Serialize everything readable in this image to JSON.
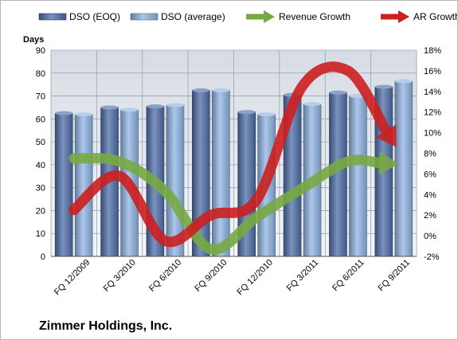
{
  "chart_data": {
    "type": "bar",
    "title": "Zimmer Holdings, Inc.",
    "y_left_label": "Days",
    "y_left_range": [
      0,
      90
    ],
    "y_left_ticks": [
      "0",
      "10",
      "20",
      "30",
      "40",
      "50",
      "60",
      "70",
      "80",
      "90"
    ],
    "y_right_range": [
      -2,
      18
    ],
    "y_right_ticks": [
      "-2%",
      "0%",
      "2%",
      "4%",
      "6%",
      "8%",
      "10%",
      "12%",
      "14%",
      "16%",
      "18%"
    ],
    "categories": [
      "FQ 12/2009",
      "FQ 3/2010",
      "FQ 6/2010",
      "FQ 9/2010",
      "FQ 12/2010",
      "FQ 3/2011",
      "FQ 6/2011",
      "FQ 9/2011"
    ],
    "bar_series": [
      {
        "name": "DSO (EOQ)",
        "color": "#4f6ea8",
        "values": [
          62.5,
          65,
          65.5,
          72.5,
          63,
          70.5,
          71.5,
          74
        ]
      },
      {
        "name": "DSO (average)",
        "color": "#8fb4e3",
        "values": [
          62,
          64,
          66,
          72.5,
          62,
          66.5,
          70,
          76.5
        ]
      }
    ],
    "line_series": [
      {
        "name": "Revenue Growth",
        "color": "#77a943",
        "values": [
          7.5,
          7.2,
          4.3,
          -1.3,
          1.8,
          4.6,
          7.2,
          7.0
        ]
      },
      {
        "name": "AR Growth",
        "color": "#cc1f1f",
        "values": [
          2.5,
          5.8,
          -0.5,
          2.0,
          3.5,
          14.5,
          16.0,
          9.0
        ]
      }
    ],
    "legend_position": "top",
    "gridlines": true
  }
}
